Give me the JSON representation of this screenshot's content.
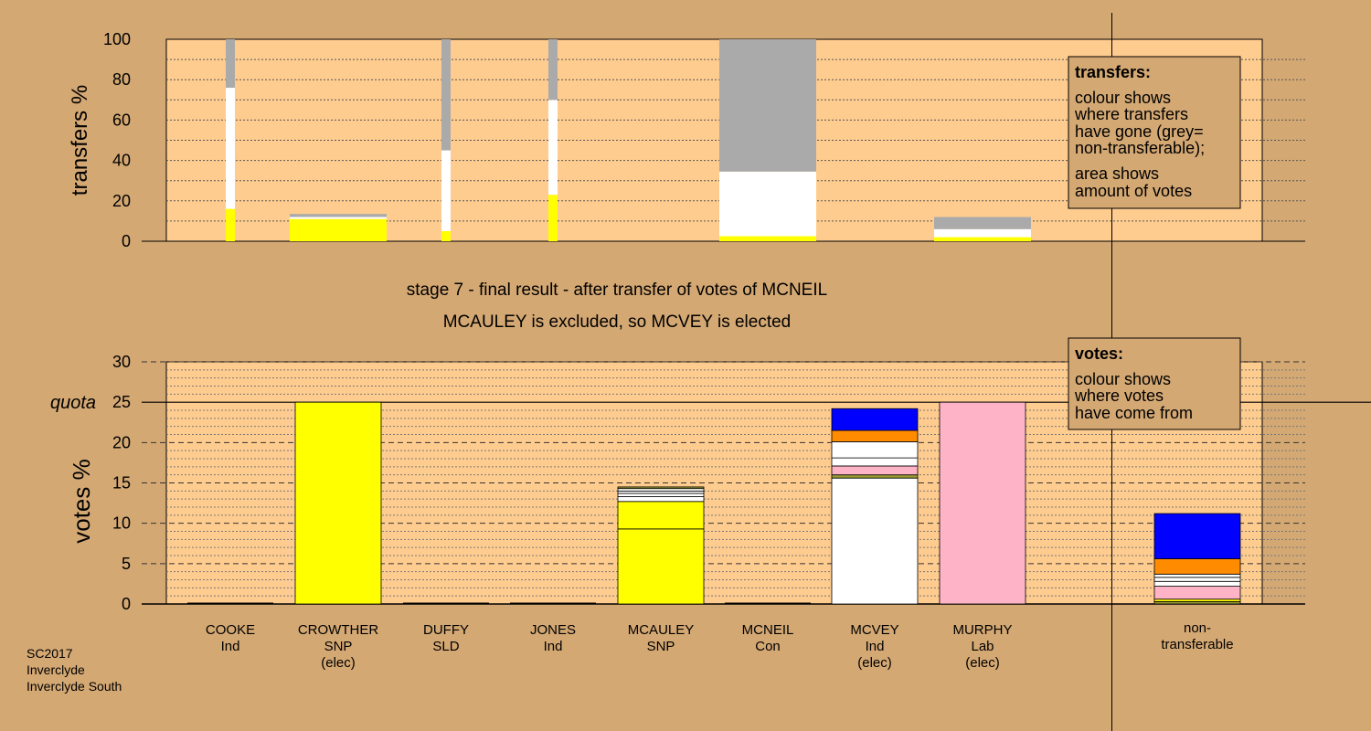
{
  "colors": {
    "background": "#d4a873",
    "plot_bg": "#ffcc8f",
    "yellow": "#ffff00",
    "white": "#ffffff",
    "grey": "#aaaaaa",
    "pink": "#ffb3c6",
    "orange": "#ff8c00",
    "blue": "#0000ff",
    "olive": "#999933"
  },
  "chart_data": [
    {
      "type": "bar",
      "stacked": true,
      "ylabel": "transfers %",
      "ylim": [
        0,
        100
      ],
      "yticks": [
        0,
        20,
        40,
        60,
        80,
        100
      ],
      "categories": [
        "COOKE",
        "CROWTHER",
        "DUFFY",
        "JONES",
        "MCAULEY",
        "MCNEIL",
        "MCVEY",
        "MURPHY"
      ],
      "bars": [
        {
          "category": "COOKE",
          "width": "narrow",
          "segments": [
            {
              "color": "yellow",
              "value": 16
            },
            {
              "color": "white",
              "value": 60
            },
            {
              "color": "grey",
              "value": 24
            }
          ]
        },
        {
          "category": "CROWTHER",
          "width": "wide",
          "segments": [
            {
              "color": "yellow",
              "value": 11
            },
            {
              "color": "white",
              "value": 1
            },
            {
              "color": "grey",
              "value": 1.5
            }
          ]
        },
        {
          "category": "DUFFY",
          "width": "narrow",
          "segments": [
            {
              "color": "yellow",
              "value": 5
            },
            {
              "color": "white",
              "value": 40
            },
            {
              "color": "grey",
              "value": 55
            }
          ]
        },
        {
          "category": "JONES",
          "width": "narrow",
          "segments": [
            {
              "color": "yellow",
              "value": 23
            },
            {
              "color": "white",
              "value": 47
            },
            {
              "color": "grey",
              "value": 30
            }
          ]
        },
        {
          "category": "MCNEIL",
          "width": "wide",
          "segments": [
            {
              "color": "yellow",
              "value": 2.5
            },
            {
              "color": "white",
              "value": 32
            },
            {
              "color": "grey",
              "value": 65.5
            }
          ]
        },
        {
          "category": "MURPHY",
          "width": "wide",
          "segments": [
            {
              "color": "yellow",
              "value": 2
            },
            {
              "color": "white",
              "value": 4
            },
            {
              "color": "grey",
              "value": 6
            }
          ]
        }
      ],
      "legend": {
        "title": "transfers:",
        "lines": [
          "colour shows",
          "where transfers",
          "have gone (grey=",
          "non-transferable);",
          "area shows",
          "amount of votes"
        ],
        "placement": "top-right"
      }
    },
    {
      "type": "bar",
      "stacked": true,
      "ylabel": "votes %",
      "ylim": [
        0,
        30
      ],
      "yticks": [
        0,
        5,
        10,
        15,
        20,
        25,
        30
      ],
      "quota": {
        "label": "quota",
        "value": 25
      },
      "categories": [
        {
          "name": "COOKE",
          "party": "Ind",
          "note": ""
        },
        {
          "name": "CROWTHER",
          "party": "SNP",
          "note": "(elec)"
        },
        {
          "name": "DUFFY",
          "party": "SLD",
          "note": ""
        },
        {
          "name": "JONES",
          "party": "Ind",
          "note": ""
        },
        {
          "name": "MCAULEY",
          "party": "SNP",
          "note": ""
        },
        {
          "name": "MCNEIL",
          "party": "Con",
          "note": ""
        },
        {
          "name": "MCVEY",
          "party": "Ind",
          "note": "(elec)"
        },
        {
          "name": "MURPHY",
          "party": "Lab",
          "note": "(elec)"
        }
      ],
      "non_transferable": {
        "line1": "non-",
        "line2": "transferable"
      },
      "stacks": [
        {
          "category": "COOKE",
          "segments": []
        },
        {
          "category": "CROWTHER",
          "segments": [
            {
              "color": "yellow",
              "value": 25
            }
          ]
        },
        {
          "category": "DUFFY",
          "segments": []
        },
        {
          "category": "JONES",
          "segments": []
        },
        {
          "category": "MCAULEY",
          "segments": [
            {
              "color": "yellow",
              "value": 9.3
            },
            {
              "color": "yellow",
              "value": 3.4
            },
            {
              "color": "white",
              "value": 0.6
            },
            {
              "color": "white",
              "value": 0.4
            },
            {
              "color": "white",
              "value": 0.3
            },
            {
              "color": "white",
              "value": 0.3
            },
            {
              "color": "olive",
              "value": 0.2
            }
          ]
        },
        {
          "category": "MCNEIL",
          "segments": []
        },
        {
          "category": "MCVEY",
          "segments": [
            {
              "color": "white",
              "value": 15.6
            },
            {
              "color": "olive",
              "value": 0.4
            },
            {
              "color": "pink",
              "value": 1.1
            },
            {
              "color": "white",
              "value": 1.0
            },
            {
              "color": "white",
              "value": 2.0
            },
            {
              "color": "orange",
              "value": 1.4
            },
            {
              "color": "blue",
              "value": 2.7
            }
          ]
        },
        {
          "category": "MURPHY",
          "segments": [
            {
              "color": "pink",
              "value": 25
            }
          ]
        },
        {
          "category": "non-transferable",
          "segments": [
            {
              "color": "olive",
              "value": 0.3
            },
            {
              "color": "yellow",
              "value": 0.3
            },
            {
              "color": "pink",
              "value": 1.6
            },
            {
              "color": "white",
              "value": 0.6
            },
            {
              "color": "white",
              "value": 0.5
            },
            {
              "color": "white",
              "value": 0.4
            },
            {
              "color": "orange",
              "value": 1.9
            },
            {
              "color": "blue",
              "value": 5.6
            }
          ]
        }
      ],
      "legend": {
        "title": "votes:",
        "lines": [
          "colour shows",
          "where votes",
          "have come from"
        ],
        "placement": "top-right"
      }
    }
  ],
  "stage_title": "stage 7 - final result - after transfer of votes of MCNEIL",
  "stage_subtitle": "MCAULEY is excluded, so MCVEY is elected",
  "footer": [
    "SC2017",
    "Inverclyde",
    "Inverclyde South"
  ]
}
